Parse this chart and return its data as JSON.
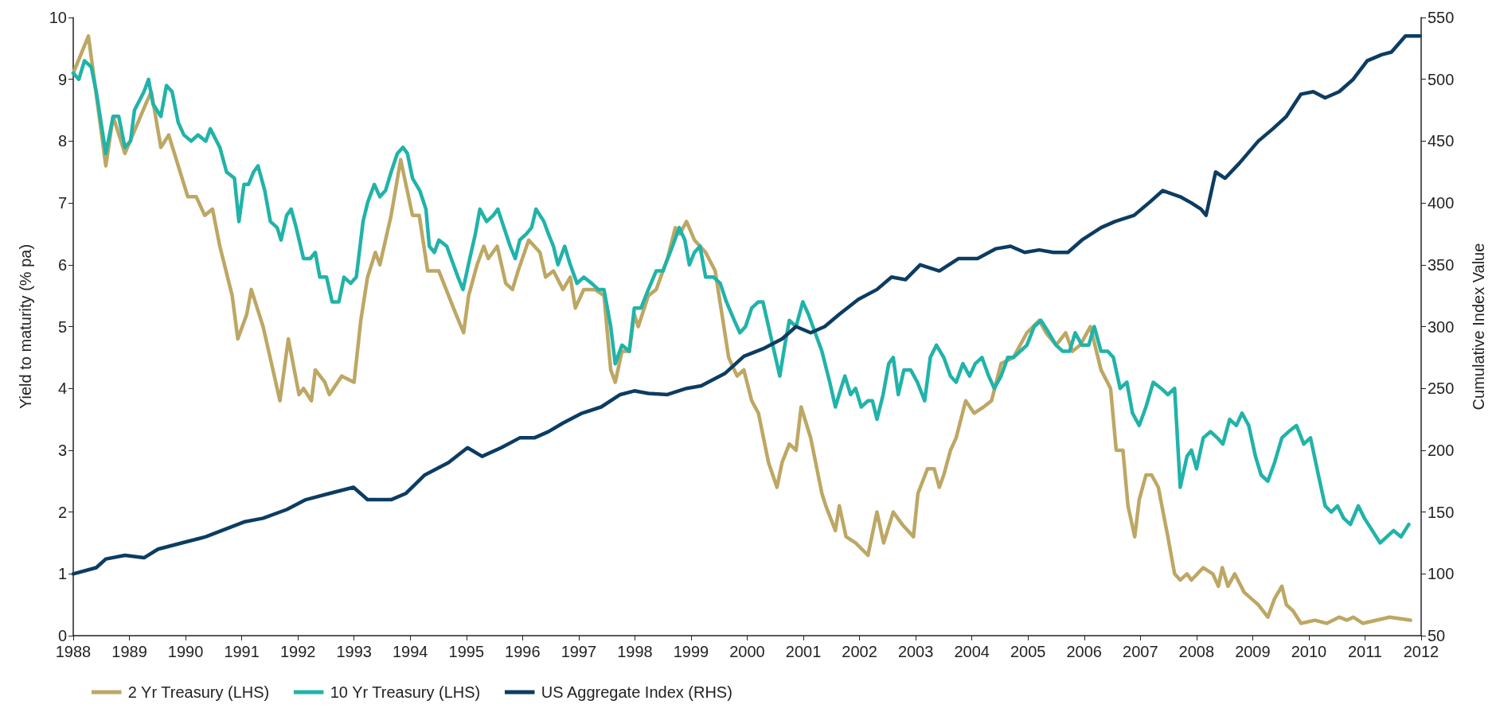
{
  "chart_data": {
    "type": "line",
    "xlabel": null,
    "ylabel": "Yield to maturity (% pa)",
    "y2label": "Cumulative Index Value",
    "xlim": [
      1988,
      2012
    ],
    "xticks": [
      1988,
      1989,
      1990,
      1991,
      1992,
      1993,
      1994,
      1995,
      1996,
      1997,
      1998,
      1999,
      2000,
      2001,
      2002,
      2003,
      2004,
      2005,
      2006,
      2007,
      2008,
      2009,
      2010,
      2011,
      2012
    ],
    "ylim": [
      0,
      10
    ],
    "yticks": [
      0,
      1,
      2,
      3,
      4,
      5,
      6,
      7,
      8,
      9,
      10
    ],
    "y2lim": [
      50,
      550
    ],
    "y2ticks": [
      50,
      100,
      150,
      200,
      250,
      300,
      350,
      400,
      450,
      500,
      550
    ],
    "grid": false,
    "legend": "bottom",
    "marker": "none",
    "line_style": "solid",
    "series": [
      {
        "name": "2 Yr Treasury (LHS)",
        "color": "#bda764",
        "x": [
          1988.0,
          1988.27,
          1988.58,
          1988.71,
          1988.92,
          1989.29,
          1989.39,
          1989.56,
          1989.7,
          1989.87,
          1990.04,
          1990.19,
          1990.34,
          1990.48,
          1990.61,
          1990.83,
          1990.93,
          1991.09,
          1991.17,
          1991.38,
          1991.53,
          1991.68,
          1991.83,
          1992.02,
          1992.1,
          1992.24,
          1992.31,
          1992.48,
          1992.56,
          1992.78,
          1993.0,
          1993.12,
          1993.24,
          1993.38,
          1993.46,
          1993.66,
          1993.83,
          1994.04,
          1994.16,
          1994.31,
          1994.51,
          1994.77,
          1994.95,
          1995.04,
          1995.19,
          1995.31,
          1995.39,
          1995.55,
          1995.7,
          1995.82,
          1995.92,
          1996.11,
          1996.31,
          1996.41,
          1996.55,
          1996.72,
          1996.85,
          1996.94,
          1997.09,
          1997.29,
          1997.45,
          1997.57,
          1997.65,
          1997.77,
          1997.9,
          1997.99,
          1998.06,
          1998.24,
          1998.38,
          1998.58,
          1998.72,
          1998.8,
          1998.92,
          1999.06,
          1999.26,
          1999.43,
          1999.55,
          1999.67,
          1999.82,
          1999.94,
          2000.08,
          2000.2,
          2000.38,
          2000.53,
          2000.62,
          2000.75,
          2000.87,
          2000.96,
          2001.13,
          2001.33,
          2001.4,
          2001.57,
          2001.64,
          2001.76,
          2001.93,
          2002.15,
          2002.31,
          2002.43,
          2002.6,
          2002.76,
          2002.96,
          2003.04,
          2003.21,
          2003.33,
          2003.42,
          2003.5,
          2003.62,
          2003.72,
          2003.89,
          2004.04,
          2004.21,
          2004.35,
          2004.52,
          2004.74,
          2004.98,
          2005.2,
          2005.32,
          2005.5,
          2005.67,
          2005.79,
          2005.93,
          2006.11,
          2006.3,
          2006.47,
          2006.57,
          2006.69,
          2006.78,
          2006.9,
          2006.98,
          2007.1,
          2007.2,
          2007.32,
          2007.49,
          2007.61,
          2007.71,
          2007.83,
          2007.91,
          2008.12,
          2008.29,
          2008.39,
          2008.46,
          2008.56,
          2008.68,
          2008.85,
          2009.1,
          2009.27,
          2009.39,
          2009.52,
          2009.6,
          2009.72,
          2009.86,
          2010.11,
          2010.32,
          2010.54,
          2010.68,
          2010.79,
          2010.96,
          2011.44,
          2011.81
        ],
        "values": [
          9.1,
          9.7,
          7.6,
          8.4,
          7.8,
          8.6,
          8.8,
          7.9,
          8.1,
          7.6,
          7.1,
          7.1,
          6.8,
          6.9,
          6.3,
          5.5,
          4.8,
          5.2,
          5.6,
          5.0,
          4.4,
          3.8,
          4.8,
          3.9,
          4.0,
          3.8,
          4.3,
          4.1,
          3.9,
          4.2,
          4.1,
          5.1,
          5.8,
          6.2,
          6.0,
          6.8,
          7.7,
          6.8,
          6.8,
          5.9,
          5.9,
          5.3,
          4.9,
          5.5,
          6.0,
          6.3,
          6.1,
          6.3,
          5.7,
          5.6,
          5.9,
          6.4,
          6.2,
          5.8,
          5.9,
          5.6,
          5.8,
          5.3,
          5.6,
          5.6,
          5.5,
          4.3,
          4.1,
          4.6,
          4.6,
          5.2,
          5.0,
          5.5,
          5.6,
          6.1,
          6.6,
          6.5,
          6.7,
          6.4,
          6.2,
          5.9,
          5.2,
          4.5,
          4.2,
          4.3,
          3.8,
          3.6,
          2.8,
          2.4,
          2.8,
          3.1,
          3.0,
          3.7,
          3.2,
          2.3,
          2.1,
          1.7,
          2.1,
          1.6,
          1.5,
          1.3,
          2.0,
          1.5,
          2.0,
          1.8,
          1.6,
          2.3,
          2.7,
          2.7,
          2.4,
          2.6,
          3.0,
          3.2,
          3.8,
          3.6,
          3.7,
          3.8,
          4.4,
          4.5,
          4.9,
          5.1,
          4.9,
          4.7,
          4.9,
          4.6,
          4.7,
          5.0,
          4.3,
          4.0,
          3.0,
          3.0,
          2.1,
          1.6,
          2.2,
          2.6,
          2.6,
          2.4,
          1.6,
          1.0,
          0.9,
          1.0,
          0.9,
          1.1,
          1.0,
          0.8,
          1.1,
          0.8,
          1.0,
          0.7,
          0.5,
          0.3,
          0.6,
          0.8,
          0.5,
          0.4,
          0.2,
          0.25,
          0.2,
          0.3,
          0.25,
          0.3,
          0.2,
          0.3,
          0.25
        ]
      },
      {
        "name": "10 Yr Treasury (LHS)",
        "color": "#21b3a9",
        "x": [
          1988.0,
          1988.1,
          1988.2,
          1988.32,
          1988.41,
          1988.58,
          1988.71,
          1988.81,
          1988.92,
          1989.02,
          1989.09,
          1989.26,
          1989.34,
          1989.42,
          1989.56,
          1989.66,
          1989.76,
          1989.87,
          1989.97,
          1990.1,
          1990.22,
          1990.36,
          1990.44,
          1990.61,
          1990.73,
          1990.87,
          1990.95,
          1991.04,
          1991.12,
          1991.21,
          1991.29,
          1991.41,
          1991.51,
          1991.63,
          1991.7,
          1991.8,
          1991.88,
          1991.97,
          1992.1,
          1992.22,
          1992.31,
          1992.39,
          1992.51,
          1992.61,
          1992.73,
          1992.82,
          1992.94,
          1993.04,
          1993.16,
          1993.24,
          1993.36,
          1993.46,
          1993.56,
          1993.66,
          1993.77,
          1993.87,
          1993.95,
          1994.04,
          1994.17,
          1994.28,
          1994.34,
          1994.43,
          1994.51,
          1994.65,
          1994.77,
          1994.85,
          1994.94,
          1995.06,
          1995.16,
          1995.24,
          1995.36,
          1995.48,
          1995.56,
          1995.67,
          1995.78,
          1995.87,
          1995.95,
          1996.07,
          1996.16,
          1996.24,
          1996.38,
          1996.46,
          1996.55,
          1996.63,
          1996.75,
          1996.85,
          1996.97,
          1997.09,
          1997.23,
          1997.35,
          1997.45,
          1997.57,
          1997.65,
          1997.77,
          1997.9,
          1997.99,
          1998.11,
          1998.24,
          1998.38,
          1998.5,
          1998.67,
          1998.79,
          1998.89,
          1998.97,
          1999.06,
          1999.16,
          1999.26,
          1999.4,
          1999.52,
          1999.63,
          1999.77,
          1999.87,
          1999.97,
          2000.08,
          2000.2,
          2000.28,
          2000.38,
          2000.48,
          2000.58,
          2000.67,
          2000.75,
          2000.87,
          2000.99,
          2001.09,
          2001.21,
          2001.33,
          2001.47,
          2001.57,
          2001.67,
          2001.74,
          2001.84,
          2001.93,
          2002.03,
          2002.15,
          2002.23,
          2002.31,
          2002.42,
          2002.52,
          2002.6,
          2002.69,
          2002.79,
          2002.91,
          2003.03,
          2003.16,
          2003.26,
          2003.37,
          2003.5,
          2003.62,
          2003.72,
          2003.84,
          2003.96,
          2004.06,
          2004.18,
          2004.3,
          2004.4,
          2004.52,
          2004.64,
          2004.74,
          2004.86,
          2004.98,
          2005.11,
          2005.23,
          2005.37,
          2005.5,
          2005.62,
          2005.74,
          2005.84,
          2005.96,
          2006.08,
          2006.18,
          2006.3,
          2006.42,
          2006.52,
          2006.64,
          2006.76,
          2006.86,
          2006.98,
          2007.1,
          2007.23,
          2007.37,
          2007.49,
          2007.61,
          2007.71,
          2007.83,
          2007.91,
          2008.0,
          2008.12,
          2008.25,
          2008.37,
          2008.47,
          2008.59,
          2008.71,
          2008.81,
          2008.93,
          2009.05,
          2009.15,
          2009.27,
          2009.39,
          2009.52,
          2009.64,
          2009.78,
          2009.91,
          2010.03,
          2010.17,
          2010.29,
          2010.4,
          2010.51,
          2010.62,
          2010.74,
          2010.88,
          2010.99,
          2011.13,
          2011.27,
          2011.39,
          2011.51,
          2011.64,
          2011.78
        ],
        "values": [
          9.1,
          9.0,
          9.3,
          9.2,
          8.8,
          7.8,
          8.4,
          8.4,
          7.9,
          8.0,
          8.5,
          8.8,
          9.0,
          8.6,
          8.4,
          8.9,
          8.8,
          8.3,
          8.1,
          8.0,
          8.1,
          8.0,
          8.2,
          7.9,
          7.5,
          7.4,
          6.7,
          7.3,
          7.3,
          7.5,
          7.6,
          7.2,
          6.7,
          6.6,
          6.4,
          6.8,
          6.9,
          6.6,
          6.1,
          6.1,
          6.2,
          5.8,
          5.8,
          5.4,
          5.4,
          5.8,
          5.7,
          5.8,
          6.7,
          7.0,
          7.3,
          7.1,
          7.2,
          7.5,
          7.8,
          7.9,
          7.8,
          7.4,
          7.2,
          6.9,
          6.3,
          6.2,
          6.4,
          6.3,
          6.0,
          5.8,
          5.6,
          6.1,
          6.5,
          6.9,
          6.7,
          6.8,
          6.9,
          6.6,
          6.3,
          6.1,
          6.4,
          6.5,
          6.6,
          6.9,
          6.7,
          6.5,
          6.3,
          6.0,
          6.3,
          6.0,
          5.7,
          5.8,
          5.7,
          5.6,
          5.6,
          5.0,
          4.4,
          4.7,
          4.6,
          5.3,
          5.3,
          5.6,
          5.9,
          5.9,
          6.3,
          6.6,
          6.4,
          6.0,
          6.2,
          6.3,
          5.8,
          5.8,
          5.7,
          5.4,
          5.1,
          4.9,
          5.0,
          5.3,
          5.4,
          5.4,
          5.0,
          4.6,
          4.2,
          4.7,
          5.1,
          5.0,
          5.4,
          5.2,
          4.9,
          4.6,
          4.1,
          3.7,
          4.0,
          4.2,
          3.9,
          4.0,
          3.7,
          3.8,
          3.8,
          3.5,
          3.9,
          4.4,
          4.5,
          3.9,
          4.3,
          4.3,
          4.1,
          3.8,
          4.5,
          4.7,
          4.5,
          4.2,
          4.1,
          4.4,
          4.2,
          4.4,
          4.5,
          4.2,
          4.0,
          4.2,
          4.5,
          4.5,
          4.6,
          4.7,
          5.0,
          5.1,
          4.9,
          4.7,
          4.6,
          4.6,
          4.9,
          4.7,
          4.7,
          5.0,
          4.6,
          4.6,
          4.5,
          4.0,
          4.1,
          3.6,
          3.4,
          3.7,
          4.1,
          4.0,
          3.9,
          4.0,
          2.4,
          2.9,
          3.0,
          2.7,
          3.2,
          3.3,
          3.2,
          3.1,
          3.5,
          3.4,
          3.6,
          3.4,
          2.9,
          2.6,
          2.5,
          2.8,
          3.2,
          3.3,
          3.4,
          3.1,
          3.2,
          2.6,
          2.1,
          2.0,
          2.1,
          1.9,
          1.8,
          2.1,
          1.9,
          1.7,
          1.5,
          1.6,
          1.7,
          1.6,
          1.8
        ]
      },
      {
        "name": "US Aggregate Index (RHS)",
        "color": "#0c3c62",
        "axis": "y2",
        "x": [
          1988.0,
          1988.41,
          1988.58,
          1988.92,
          1989.26,
          1989.51,
          1989.93,
          1990.36,
          1990.7,
          1991.04,
          1991.38,
          1991.8,
          1992.14,
          1992.56,
          1992.99,
          1993.24,
          1993.66,
          1993.92,
          1994.26,
          1994.68,
          1995.02,
          1995.28,
          1995.62,
          1995.95,
          1996.21,
          1996.46,
          1996.72,
          1997.06,
          1997.4,
          1997.74,
          1997.99,
          1998.24,
          1998.58,
          1998.92,
          1999.18,
          1999.6,
          1999.94,
          2000.28,
          2000.62,
          2000.87,
          2001.13,
          2001.38,
          2001.64,
          2001.98,
          2002.31,
          2002.57,
          2002.82,
          2003.08,
          2003.42,
          2003.76,
          2004.1,
          2004.43,
          2004.69,
          2004.94,
          2005.2,
          2005.45,
          2005.71,
          2005.96,
          2006.3,
          2006.55,
          2006.89,
          2007.15,
          2007.4,
          2007.71,
          2007.91,
          2008.08,
          2008.17,
          2008.34,
          2008.51,
          2008.76,
          2009.1,
          2009.36,
          2009.6,
          2009.86,
          2010.08,
          2010.29,
          2010.54,
          2010.79,
          2011.04,
          2011.3,
          2011.47,
          2011.72,
          2011.98
        ],
        "values": [
          100,
          105,
          112,
          115,
          113,
          120,
          125,
          130,
          136,
          142,
          145,
          152,
          160,
          165,
          170,
          160,
          160,
          165,
          180,
          190,
          202,
          195,
          202,
          210,
          210,
          215,
          222,
          230,
          235,
          245,
          248,
          246,
          245,
          250,
          252,
          262,
          276,
          282,
          290,
          300,
          295,
          300,
          310,
          322,
          330,
          340,
          338,
          350,
          345,
          355,
          355,
          363,
          365,
          360,
          362,
          360,
          360,
          370,
          380,
          385,
          390,
          400,
          410,
          405,
          400,
          395,
          390,
          425,
          420,
          432,
          450,
          460,
          470,
          488,
          490,
          485,
          490,
          500,
          515,
          520,
          522,
          535,
          535
        ]
      }
    ]
  }
}
